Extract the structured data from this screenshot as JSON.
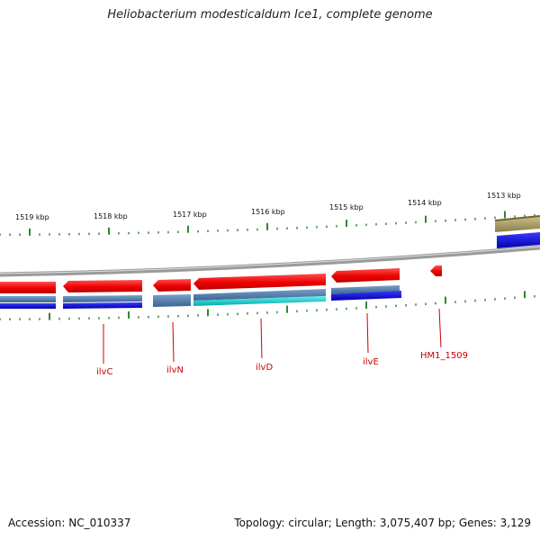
{
  "title": "Heliobacterium modesticaldum Ice1, complete genome",
  "footer": {
    "accession": "Accession: NC_010337",
    "topology": "Topology: circular; Length: 3,075,407 bp; Genes: 3,129"
  },
  "scale_labels": [
    "1519 kbp",
    "1518 kbp",
    "1517 kbp",
    "1516 kbp",
    "1515 kbp",
    "1514 kbp",
    "1513 kbp"
  ],
  "gene_labels": [
    "ilvC",
    "ilvN",
    "ilvD",
    "ilvE",
    "HM1_1509"
  ],
  "colors": {
    "gene_red": "#ee1111",
    "gene_blue": "#0000dd",
    "gene_steel": "#4477aa",
    "gene_cyan": "#00cccc",
    "gene_olive": "#9c8f55",
    "backbone": "#888888",
    "tick_green": "#1a7a1a",
    "label_red": "#cc0000"
  }
}
